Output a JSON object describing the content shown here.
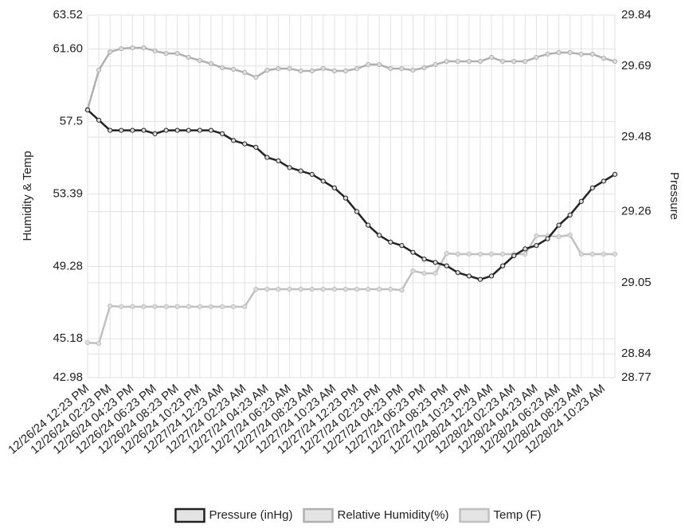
{
  "chart_data": {
    "type": "line",
    "y_label": "Humidity & Temp",
    "y2_label": "Pressure",
    "categories": [
      "12/26/24 12:23 PM",
      null,
      "12/26/24 02:23 PM",
      null,
      "12/26/24 04:23 PM",
      null,
      "12/26/24 06:23 PM",
      null,
      "12/26/24 08:23 PM",
      null,
      "12/26/24 10:23 PM",
      null,
      "12/27/24 12:23 AM",
      null,
      "12/27/24 02:23 AM",
      null,
      "12/27/24 04:23 AM",
      null,
      "12/27/24 06:23 AM",
      null,
      "12/27/24 08:23 AM",
      null,
      "12/27/24 10:23 AM",
      null,
      "12/27/24 12:23 PM",
      null,
      "12/27/24 02:23 PM",
      null,
      "12/27/24 04:23 PM",
      null,
      "12/27/24 06:23 PM",
      null,
      "12/27/24 08:23 PM",
      null,
      "12/27/24 10:23 PM",
      null,
      "12/28/24 12:23 AM",
      null,
      "12/28/24 02:23 AM",
      null,
      "12/28/24 04:23 AM",
      null,
      "12/28/24 06:23 AM",
      null,
      "12/28/24 08:23 AM",
      null,
      "12/28/24 10:23 AM",
      null
    ],
    "series": [
      {
        "name": "Pressure (inHg)",
        "color": "#222222",
        "axis": "y2",
        "values": [
          29.56,
          29.53,
          29.5,
          29.5,
          29.5,
          29.5,
          29.49,
          29.5,
          29.5,
          29.5,
          29.5,
          29.5,
          29.49,
          29.47,
          29.46,
          29.45,
          29.42,
          29.41,
          29.39,
          29.38,
          29.37,
          29.35,
          29.33,
          29.3,
          29.26,
          29.22,
          29.19,
          29.17,
          29.16,
          29.14,
          29.12,
          29.11,
          29.1,
          29.08,
          29.07,
          29.06,
          29.07,
          29.1,
          29.13,
          29.15,
          29.16,
          29.18,
          29.22,
          29.25,
          29.29,
          29.33,
          29.35,
          29.37
        ]
      },
      {
        "name": "Relative Humidity(%)",
        "color": "#b0b0b0",
        "values": [
          58.19,
          60.4,
          61.44,
          61.62,
          61.67,
          61.67,
          61.49,
          61.35,
          61.35,
          61.13,
          60.95,
          60.77,
          60.54,
          60.45,
          60.27,
          60.0,
          60.4,
          60.49,
          60.49,
          60.36,
          60.36,
          60.49,
          60.36,
          60.36,
          60.49,
          60.72,
          60.72,
          60.49,
          60.49,
          60.4,
          60.54,
          60.72,
          60.9,
          60.9,
          60.9,
          60.9,
          61.13,
          60.9,
          60.9,
          60.9,
          61.13,
          61.31,
          61.4,
          61.4,
          61.31,
          61.31,
          61.08,
          60.9
        ]
      },
      {
        "name": "Temp (F)",
        "color": "#c0c0c0",
        "values": [
          44.96,
          44.92,
          47.04,
          47.0,
          47.0,
          47.0,
          47.0,
          47.0,
          47.0,
          47.0,
          47.0,
          47.0,
          47.0,
          47.0,
          47.0,
          47.99,
          47.99,
          47.99,
          47.99,
          47.99,
          47.99,
          47.99,
          47.99,
          47.99,
          47.99,
          47.99,
          47.99,
          47.99,
          47.94,
          49.03,
          48.89,
          48.89,
          50.02,
          49.98,
          49.98,
          49.98,
          49.98,
          49.98,
          49.98,
          49.98,
          51.01,
          51.01,
          50.97,
          51.06,
          49.98,
          49.98,
          49.98,
          49.98
        ]
      }
    ],
    "ylim": [
      42.98,
      63.52
    ],
    "yticks": [
      42.98,
      45.18,
      49.28,
      53.39,
      57.5,
      {
        "value": 61.6,
        "label": "61.60"
      },
      63.52
    ],
    "y2lim": [
      28.77,
      29.84
    ],
    "y2ticks": [
      28.77,
      28.84,
      29.05,
      29.26,
      29.48,
      29.69,
      29.84
    ],
    "grid": true,
    "legend": "bottom"
  }
}
